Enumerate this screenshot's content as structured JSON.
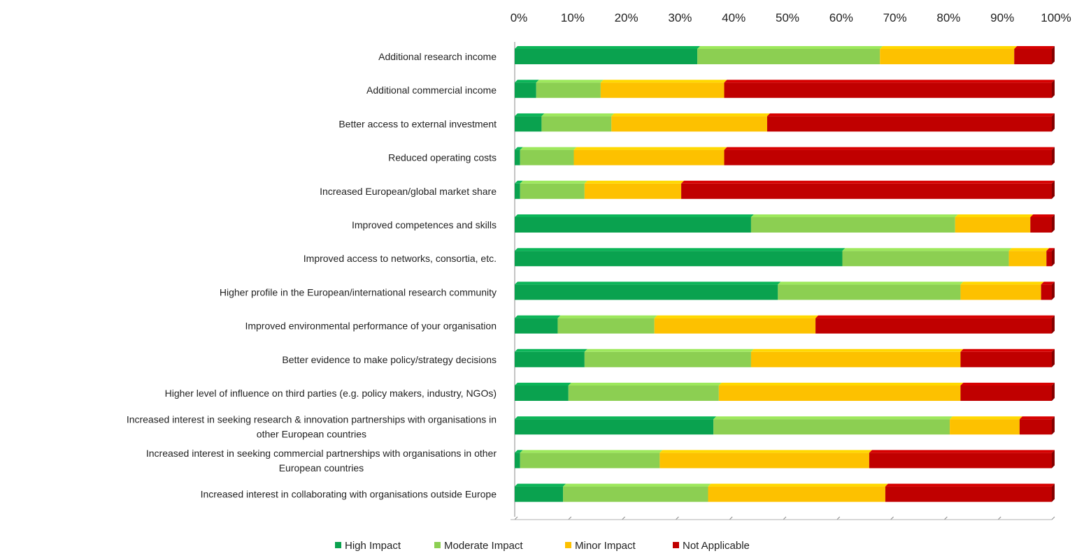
{
  "chart_data": {
    "type": "bar",
    "orientation": "horizontal",
    "stacked": "percent",
    "xlim": [
      0,
      100
    ],
    "x_ticks": [
      "0%",
      "10%",
      "20%",
      "30%",
      "40%",
      "50%",
      "60%",
      "70%",
      "80%",
      "90%",
      "100%"
    ],
    "xaxis_position": "top",
    "grid": false,
    "legend_position": "bottom",
    "categories": [
      "Additional research income",
      "Additional commercial income",
      "Better access to external investment",
      "Reduced operating costs",
      "Increased European/global market share",
      "Improved competences and skills",
      "Improved access to networks, consortia, etc.",
      "Higher profile in the European/international research community",
      "Improved environmental performance of your organisation",
      "Better evidence to make policy/strategy decisions",
      "Higher level of influence on third parties (e.g. policy makers, industry, NGOs)",
      "Increased interest in seeking research & innovation partnerships with organisations in other European countries",
      "Increased interest in seeking commercial partnerships with organisations in other European countries",
      "Increased interest in collaborating with organisations outside Europe"
    ],
    "category_lines": [
      [
        "Additional research income"
      ],
      [
        "Additional commercial income"
      ],
      [
        "Better access to external investment"
      ],
      [
        "Reduced operating costs"
      ],
      [
        "Increased European/global market share"
      ],
      [
        "Improved competences and skills"
      ],
      [
        "Improved access to networks, consortia, etc."
      ],
      [
        "Higher profile in the European/international research community"
      ],
      [
        "Improved environmental performance of your organisation"
      ],
      [
        "Better evidence to make policy/strategy decisions"
      ],
      [
        "Higher level of influence on third parties (e.g. policy makers, industry, NGOs)"
      ],
      [
        "Increased interest in seeking research & innovation partnerships with organisations in",
        "other European countries"
      ],
      [
        "Increased interest in seeking commercial partnerships with organisations in other",
        "European countries"
      ],
      [
        "Increased interest in collaborating with organisations outside Europe"
      ]
    ],
    "series": [
      {
        "name": "High Impact",
        "color": "#0aa24f",
        "values": [
          34,
          4,
          5,
          1,
          1,
          44,
          61,
          49,
          8,
          13,
          10,
          37,
          1,
          9
        ]
      },
      {
        "name": "Moderate Impact",
        "color": "#8ccf52",
        "values": [
          34,
          12,
          13,
          10,
          12,
          38,
          31,
          34,
          18,
          31,
          28,
          44,
          26,
          27
        ]
      },
      {
        "name": "Minor Impact",
        "color": "#fdc100",
        "values": [
          25,
          23,
          29,
          28,
          18,
          14,
          7,
          15,
          30,
          39,
          45,
          13,
          39,
          33
        ]
      },
      {
        "name": "Not Applicable",
        "color": "#c00000",
        "values": [
          7,
          61,
          53,
          61,
          69,
          4,
          1,
          2,
          44,
          17,
          17,
          6,
          34,
          31
        ]
      }
    ]
  }
}
